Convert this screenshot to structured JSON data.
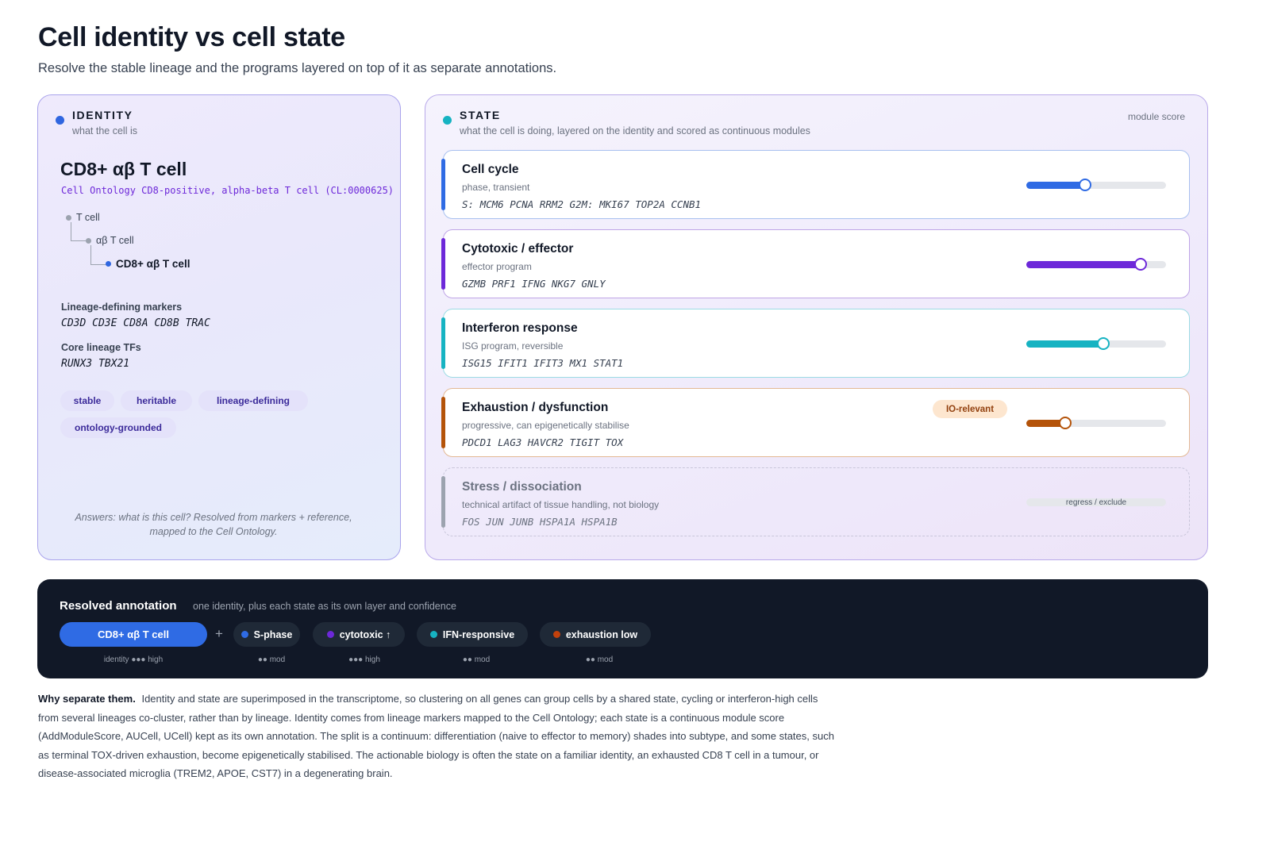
{
  "header": {
    "title": "Cell identity vs cell state",
    "subtitle": "Resolve the stable lineage and the programs layered on top of it as separate annotations."
  },
  "identity": {
    "label": "IDENTITY",
    "sub": "what the cell is",
    "name": "CD8+ αβ T cell",
    "ontology": "Cell Ontology CD8-positive, alpha-beta T cell (CL:0000625)",
    "tree": [
      "T cell",
      "αβ T cell",
      "CD8+ αβ T cell"
    ],
    "markers_label": "Lineage-defining markers",
    "markers": "CD3D CD3E CD8A CD8B TRAC",
    "tfs_label": "Core lineage TFs",
    "tfs": "RUNX3 TBX21",
    "tags": [
      "stable",
      "heritable",
      "lineage-defining",
      "ontology-grounded"
    ],
    "answers": "Answers: what is this cell? Resolved from markers + reference, mapped to the Cell Ontology.",
    "dot_color": "#2f66e0"
  },
  "state": {
    "label": "STATE",
    "sub": "what the cell is doing, layered on the identity and scored as continuous modules",
    "score_label": "module score",
    "dot_color": "#16b3c2",
    "modules": [
      {
        "title": "Cell cycle",
        "sub": "phase, transient",
        "genes": "S: MCM6 PCNA RRM2 G2M: MKI67 TOP2A CCNB1",
        "score": 0.42,
        "color": "#2f6be4",
        "border": "#a8c0ef"
      },
      {
        "title": "Cytotoxic / effector",
        "sub": "effector program",
        "genes": "GZMB PRF1 IFNG NKG7 GNLY",
        "score": 0.82,
        "color": "#6d28d9",
        "border": "#bfa5e6"
      },
      {
        "title": "Interferon response",
        "sub": "ISG program, reversible",
        "genes": "ISG15 IFIT1 IFIT3 MX1 STAT1",
        "score": 0.55,
        "color": "#16b3c2",
        "border": "#9cdbe4"
      },
      {
        "title": "Exhaustion / dysfunction",
        "sub": "progressive, can epigenetically stabilise",
        "genes": "PDCD1 LAG3 HAVCR2 TIGIT TOX",
        "score": 0.28,
        "color": "#b45309",
        "border": "#e3b894",
        "badge": "IO-relevant"
      },
      {
        "title": "Stress / dissociation",
        "sub": "technical artifact of tissue handling, not biology",
        "genes": "FOS JUN JUNB HSPA1A HSPA1B",
        "color": "#9ca3af",
        "border": "#c9c6da",
        "action": "regress / exclude"
      }
    ]
  },
  "resolved": {
    "title": "Resolved annotation",
    "sub": "one identity, plus each state as its own layer and confidence",
    "plus": "+",
    "identity_chip": {
      "label": "CD8+ αβ T cell",
      "confidence": "identity ●●● high"
    },
    "chips": [
      {
        "label": "S-phase",
        "color": "#2f6be4",
        "confidence": "●● mod"
      },
      {
        "label": "cytotoxic ↑",
        "color": "#6d28d9",
        "confidence": "●●● high"
      },
      {
        "label": "IFN-responsive",
        "color": "#16b3c2",
        "confidence": "●● mod"
      },
      {
        "label": "exhaustion low",
        "color": "#c2410c",
        "confidence": "●● mod"
      }
    ]
  },
  "why": {
    "lead": "Why separate them.",
    "text": "Identity and state are superimposed in the transcriptome, so clustering on all genes can group cells by a shared state, cycling or interferon-high cells from several lineages co-cluster, rather than by lineage. Identity comes from lineage markers mapped to the Cell Ontology; each state is a continuous module score (AddModuleScore, AUCell, UCell) kept as its own annotation. The split is a continuum: differentiation (naive to effector to memory) shades into subtype, and some states, such as terminal TOX-driven exhaustion, become epigenetically stabilised. The actionable biology is often the state on a familiar identity, an exhausted CD8 T cell in a tumour, or disease-associated microglia (TREM2, APOE, CST7) in a degenerating brain."
  }
}
